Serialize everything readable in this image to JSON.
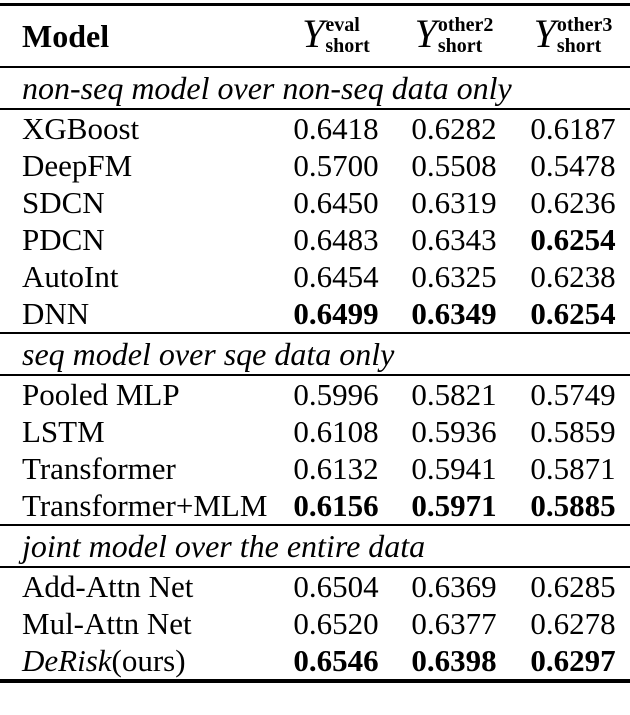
{
  "table": {
    "columns": {
      "model": "Model",
      "metrics": [
        {
          "symbol": "Y",
          "sup": "eval",
          "sub": "short"
        },
        {
          "symbol": "Y",
          "sup": "other2",
          "sub": "short"
        },
        {
          "symbol": "Y",
          "sup": "other3",
          "sub": "short"
        }
      ]
    },
    "sections": [
      {
        "title": "non-seq model over non-seq data only",
        "rows": [
          {
            "model": "XGBoost",
            "values": [
              "0.6418",
              "0.6282",
              "0.6187"
            ]
          },
          {
            "model": "DeepFM",
            "values": [
              "0.5700",
              "0.5508",
              "0.5478"
            ]
          },
          {
            "model": "SDCN",
            "values": [
              "0.6450",
              "0.6319",
              "0.6236"
            ]
          },
          {
            "model": "PDCN",
            "values": [
              "0.6483",
              "0.6343",
              "0.6254"
            ]
          },
          {
            "model": "AutoInt",
            "values": [
              "0.6454",
              "0.6325",
              "0.6238"
            ]
          },
          {
            "model": "DNN",
            "values": [
              "0.6499",
              "0.6349",
              "0.6254"
            ]
          }
        ]
      },
      {
        "title": "seq model over sqe data only",
        "rows": [
          {
            "model": "Pooled MLP",
            "values": [
              "0.5996",
              "0.5821",
              "0.5749"
            ]
          },
          {
            "model": "LSTM",
            "values": [
              "0.6108",
              "0.5936",
              "0.5859"
            ]
          },
          {
            "model": "Transformer",
            "values": [
              "0.6132",
              "0.5941",
              "0.5871"
            ]
          },
          {
            "model": "Transformer+MLM",
            "values": [
              "0.6156",
              "0.5971",
              "0.5885"
            ]
          }
        ]
      },
      {
        "title": "joint model over the entire data",
        "rows": [
          {
            "model": "Add-Attn Net",
            "values": [
              "0.6504",
              "0.6369",
              "0.6285"
            ]
          },
          {
            "model": "Mul-Attn Net",
            "values": [
              "0.6520",
              "0.6377",
              "0.6278"
            ]
          },
          {
            "model_italic": "DeRisk",
            "model_suffix": "(ours)",
            "values": [
              "0.6546",
              "0.6398",
              "0.6297"
            ]
          }
        ]
      }
    ]
  }
}
